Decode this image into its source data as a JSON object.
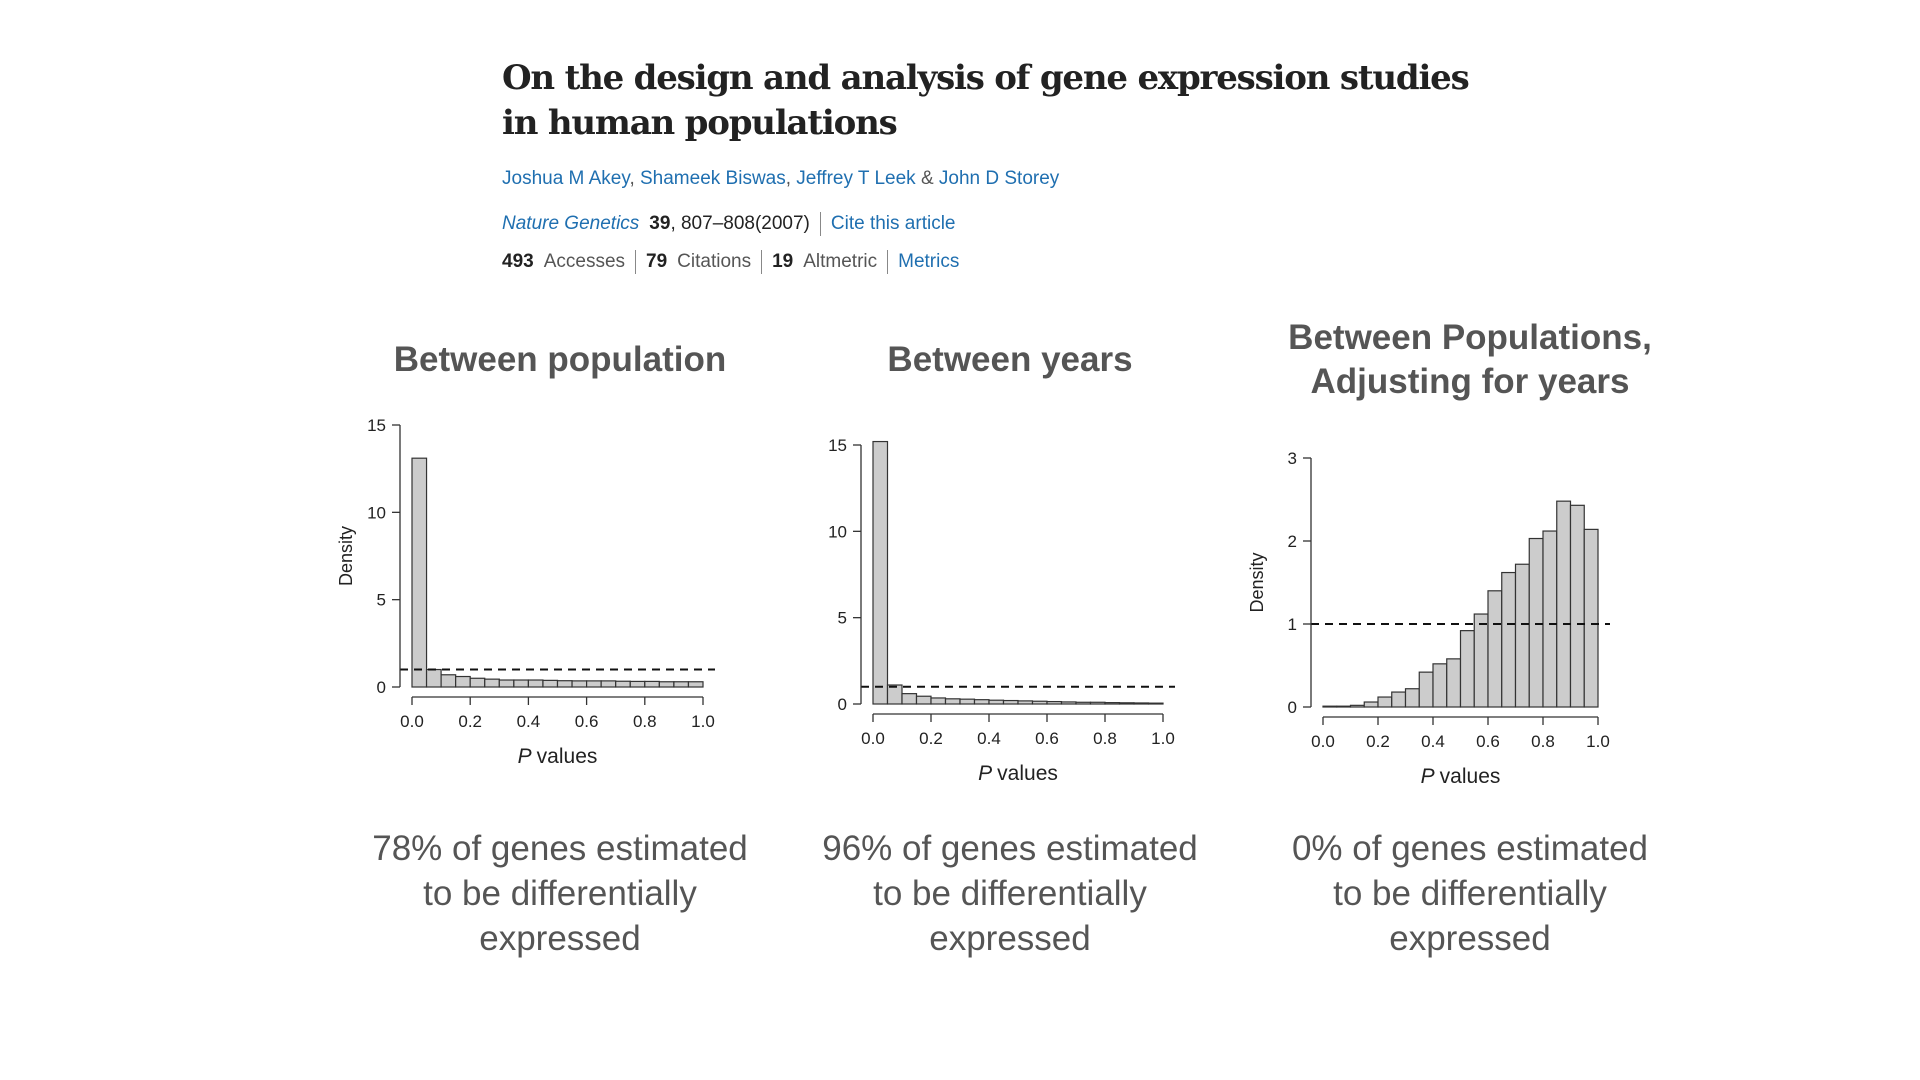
{
  "article": {
    "title_line1": "On the design and analysis of gene expression studies",
    "title_line2": "in human populations",
    "authors": [
      "Joshua M Akey",
      "Shameek Biswas",
      "Jeffrey T Leek",
      "John D Storey"
    ],
    "author_sep": ",",
    "author_and": "&",
    "journal": "Nature Genetics",
    "volume": "39",
    "pages_year": ", 807–808(2007)",
    "cite_link": "Cite this article",
    "stats": {
      "accesses_value": "493",
      "accesses_label": "Accesses",
      "citations_value": "79",
      "citations_label": "Citations",
      "altmetric_value": "19",
      "altmetric_label": "Altmetric",
      "metrics_link": "Metrics"
    }
  },
  "panels": [
    {
      "title_lines": [
        "Between population"
      ],
      "caption_lines": [
        "78% of genes estimated",
        "to be differentially",
        "expressed"
      ]
    },
    {
      "title_lines": [
        "Between years"
      ],
      "caption_lines": [
        "96% of genes estimated",
        "to be differentially",
        "expressed"
      ]
    },
    {
      "title_lines": [
        "Between Populations,",
        "Adjusting for years"
      ],
      "caption_lines": [
        "0% of genes estimated",
        "to be differentially",
        "expressed"
      ]
    }
  ],
  "chart_data": [
    {
      "type": "bar",
      "x_bin_edges": [
        0.0,
        0.05,
        0.1,
        0.15,
        0.2,
        0.25,
        0.3,
        0.35,
        0.4,
        0.45,
        0.5,
        0.55,
        0.6,
        0.65,
        0.7,
        0.75,
        0.8,
        0.85,
        0.9,
        0.95,
        1.0
      ],
      "values": [
        13.1,
        1.0,
        0.7,
        0.6,
        0.5,
        0.45,
        0.4,
        0.4,
        0.4,
        0.38,
        0.36,
        0.35,
        0.35,
        0.35,
        0.33,
        0.32,
        0.32,
        0.3,
        0.3,
        0.3
      ],
      "xlabel_italic": "P",
      "xlabel": "values",
      "ylabel": "Density",
      "xlim": [
        0,
        1
      ],
      "ylim": [
        0,
        15
      ],
      "x_ticks": [
        "0.0",
        "0.2",
        "0.4",
        "0.6",
        "0.8",
        "1.0"
      ],
      "y_ticks": [
        "0",
        "5",
        "10",
        "15"
      ],
      "reference_line": 1,
      "bar_color": "#cccccc"
    },
    {
      "type": "bar",
      "x_bin_edges": [
        0.0,
        0.05,
        0.1,
        0.15,
        0.2,
        0.25,
        0.3,
        0.35,
        0.4,
        0.45,
        0.5,
        0.55,
        0.6,
        0.65,
        0.7,
        0.75,
        0.8,
        0.85,
        0.9,
        0.95,
        1.0
      ],
      "values": [
        15.2,
        1.1,
        0.6,
        0.45,
        0.35,
        0.3,
        0.28,
        0.25,
        0.22,
        0.2,
        0.18,
        0.16,
        0.14,
        0.12,
        0.1,
        0.1,
        0.08,
        0.07,
        0.06,
        0.05
      ],
      "xlabel_italic": "P",
      "xlabel": "values",
      "ylabel": "",
      "xlim": [
        0,
        1
      ],
      "ylim": [
        0,
        15
      ],
      "x_ticks": [
        "0.0",
        "0.2",
        "0.4",
        "0.6",
        "0.8",
        "1.0"
      ],
      "y_ticks": [
        "0",
        "5",
        "10",
        "15"
      ],
      "reference_line": 1,
      "bar_color": "#cccccc"
    },
    {
      "type": "bar",
      "x_bin_edges": [
        0.0,
        0.05,
        0.1,
        0.15,
        0.2,
        0.25,
        0.3,
        0.35,
        0.4,
        0.45,
        0.5,
        0.55,
        0.6,
        0.65,
        0.7,
        0.75,
        0.8,
        0.85,
        0.9,
        0.95,
        1.0
      ],
      "values": [
        0.01,
        0.01,
        0.02,
        0.06,
        0.12,
        0.18,
        0.22,
        0.42,
        0.52,
        0.58,
        0.92,
        1.12,
        1.4,
        1.62,
        1.72,
        2.03,
        2.12,
        2.48,
        2.43,
        2.14
      ],
      "xlabel_italic": "P",
      "xlabel": "values",
      "ylabel": "Density",
      "xlim": [
        0,
        1
      ],
      "ylim": [
        0,
        3
      ],
      "x_ticks": [
        "0.0",
        "0.2",
        "0.4",
        "0.6",
        "0.8",
        "1.0"
      ],
      "y_ticks": [
        "0",
        "1",
        "2",
        "3"
      ],
      "reference_line": 1,
      "bar_color": "#cccccc"
    }
  ]
}
